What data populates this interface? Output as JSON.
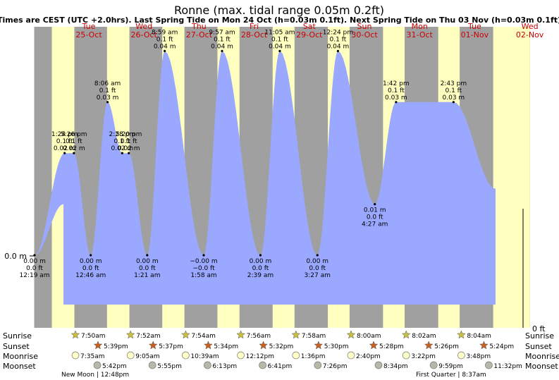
{
  "title": "Ronne (max. tidal range 0.05m 0.2ft)",
  "subtitle": "Times are CEST (UTC +2.0hrs). Last Spring Tide on Mon 24 Oct (h=0.03m 0.1ft). Next Spring Tide on Thu 03 Nov (h=0.03m 0.1ft)",
  "left_axis_label": "0.0 m",
  "right_axis_label": "0 ft",
  "row_labels": [
    "Sunrise",
    "Sunset",
    "Moonrise",
    "Moonset"
  ],
  "colors": {
    "night": "#a0a0a0",
    "day": "#ffffc0",
    "tide": "#9aa8ff",
    "weekday": "#cc0000"
  },
  "chart_data": {
    "type": "area",
    "days": [
      {
        "dow": "Tue",
        "date": "25-Oct"
      },
      {
        "dow": "Wed",
        "date": "26-Oct"
      },
      {
        "dow": "Thu",
        "date": "27-Oct"
      },
      {
        "dow": "Fri",
        "date": "28-Oct"
      },
      {
        "dow": "Sat",
        "date": "29-Oct"
      },
      {
        "dow": "Sun",
        "date": "30-Oct"
      },
      {
        "dow": "Mon",
        "date": "31-Oct"
      },
      {
        "dow": "Tue",
        "date": "01-Nov"
      },
      {
        "dow": "Wed",
        "date": "02-Nov"
      }
    ],
    "tides": [
      {
        "day": 0,
        "time": "12:19 am",
        "m": "0.00 m",
        "ft": "0.0 ft",
        "h": 0.0
      },
      {
        "day": 0,
        "time": "1:24 pm",
        "m": "0.02 m",
        "ft": "0.1 ft",
        "h": 0.02
      },
      {
        "day": 0,
        "time": "5:26 pm",
        "m": "0.02 m",
        "ft": "0.1 ft",
        "h": 0.02
      },
      {
        "day": 1,
        "time": "8:06 am",
        "m": "0.03 m",
        "ft": "0.1 ft",
        "h": 0.03
      },
      {
        "day": 1,
        "time": "12:46 am",
        "m": "0.00 m",
        "ft": "0.0 ft",
        "h": 0.0
      },
      {
        "day": 1,
        "time": "2:28 pm",
        "m": "0.02 m",
        "ft": "0.1 ft",
        "h": 0.02
      },
      {
        "day": 1,
        "time": "5:20 pm",
        "m": "0.02 m",
        "ft": "0.1 ft",
        "h": 0.02
      },
      {
        "day": 2,
        "time": "8:59 am",
        "m": "0.04 m",
        "ft": "0.1 ft",
        "h": 0.04
      },
      {
        "day": 2,
        "time": "1:21 am",
        "m": "0.00 m",
        "ft": "0.0 ft",
        "h": 0.0
      },
      {
        "day": 3,
        "time": "9:57 am",
        "m": "0.04 m",
        "ft": "0.1 ft",
        "h": 0.04
      },
      {
        "day": 3,
        "time": "1:58 am",
        "m": "−0.00 m",
        "ft": "−0.0 ft",
        "h": 0.0
      },
      {
        "day": 4,
        "time": "11:05 am",
        "m": "0.04 m",
        "ft": "0.1 ft",
        "h": 0.04
      },
      {
        "day": 4,
        "time": "2:39 am",
        "m": "0.00 m",
        "ft": "0.0 ft",
        "h": 0.0
      },
      {
        "day": 5,
        "time": "12:24 pm",
        "m": "0.04 m",
        "ft": "0.1 ft",
        "h": 0.04
      },
      {
        "day": 5,
        "time": "3:27 am",
        "m": "0.00 m",
        "ft": "0.0 ft",
        "h": 0.0
      },
      {
        "day": 6,
        "time": "1:42 pm",
        "m": "0.03 m",
        "ft": "0.1 ft",
        "h": 0.03
      },
      {
        "day": 6,
        "time": "4:27 am",
        "m": "0.01 m",
        "ft": "0.0 ft",
        "h": 0.01
      },
      {
        "day": 7,
        "time": "2:43 pm",
        "m": "0.03 m",
        "ft": "0.1 ft",
        "h": 0.03
      }
    ],
    "sunrise": [
      "7:50am",
      "7:52am",
      "7:54am",
      "7:56am",
      "7:58am",
      "8:00am",
      "8:02am",
      "8:04am"
    ],
    "sunset": [
      "5:39pm",
      "5:37pm",
      "5:34pm",
      "5:32pm",
      "5:30pm",
      "5:28pm",
      "5:26pm",
      "5:24pm"
    ],
    "moonrise": [
      "7:35am",
      "9:05am",
      "10:39am",
      "12:12pm",
      "1:36pm",
      "2:40pm",
      "3:22pm",
      "3:48pm"
    ],
    "moonset": [
      "5:42pm",
      "5:55pm",
      "6:13pm",
      "6:41pm",
      "7:26pm",
      "8:34pm",
      "9:59pm",
      "11:32pm"
    ],
    "moon_phases": [
      "New Moon | 12:48pm",
      "First Quarter | 8:37am"
    ]
  }
}
